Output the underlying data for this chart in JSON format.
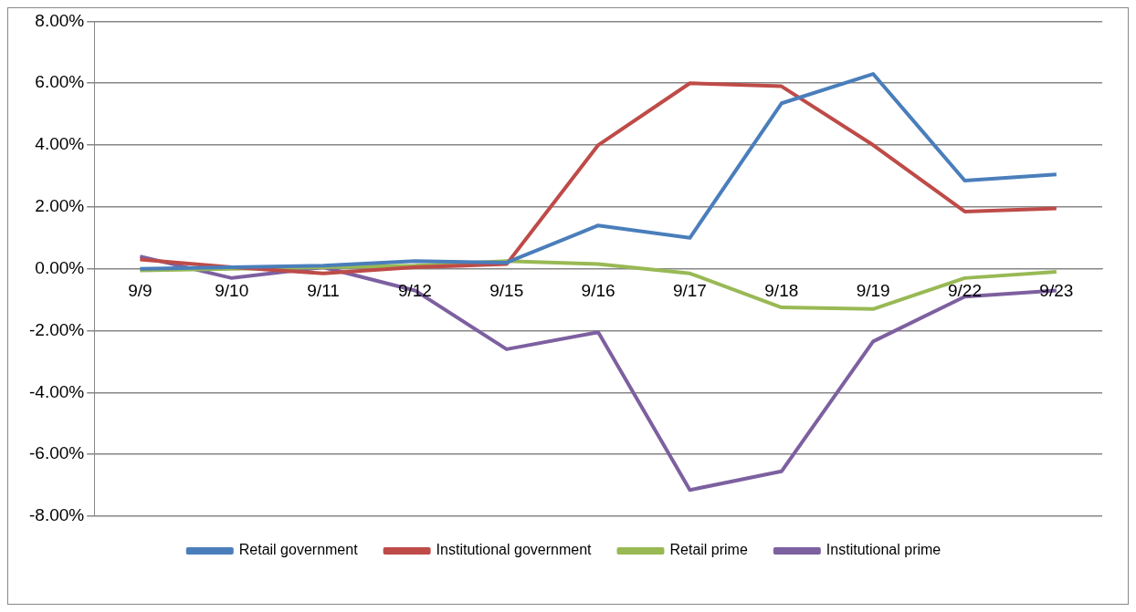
{
  "chart_data": {
    "type": "line",
    "categories": [
      "9/9",
      "9/10",
      "9/11",
      "9/12",
      "9/15",
      "9/16",
      "9/17",
      "9/18",
      "9/19",
      "9/22",
      "9/23"
    ],
    "series": [
      {
        "name": "Retail government",
        "color": "#4a7ebb",
        "values": [
          0,
          0.05,
          0.1,
          0.25,
          0.2,
          1.4,
          1.0,
          5.35,
          6.3,
          2.85,
          3.05
        ]
      },
      {
        "name": "Institutional government",
        "color": "#be4b48",
        "values": [
          0.3,
          0.05,
          -0.15,
          0.05,
          0.15,
          4.0,
          6.0,
          5.9,
          4.0,
          1.85,
          1.95
        ]
      },
      {
        "name": "Retail prime",
        "color": "#98b954",
        "values": [
          -0.05,
          0,
          0.05,
          0.1,
          0.25,
          0.15,
          -0.15,
          -1.25,
          -1.3,
          -0.3,
          -0.1
        ]
      },
      {
        "name": "Institutional prime",
        "color": "#7d60a0",
        "values": [
          0.4,
          -0.3,
          0.05,
          -0.7,
          -2.6,
          -2.05,
          -7.15,
          -6.55,
          -2.35,
          -0.9,
          -0.7
        ]
      }
    ],
    "ylim": [
      -8,
      8
    ],
    "yticks": [
      {
        "value": -8,
        "label": "-8.00%"
      },
      {
        "value": -6,
        "label": "-6.00%"
      },
      {
        "value": -4,
        "label": "-4.00%"
      },
      {
        "value": -2,
        "label": "-2.00%"
      },
      {
        "value": 0,
        "label": "0.00%"
      },
      {
        "value": 2,
        "label": "2.00%"
      },
      {
        "value": 4,
        "label": "4.00%"
      },
      {
        "value": 6,
        "label": "6.00%"
      },
      {
        "value": 8,
        "label": "8.00%"
      }
    ],
    "grid": "y",
    "legend": "bottom",
    "marker": "none",
    "line_style": "solid"
  }
}
